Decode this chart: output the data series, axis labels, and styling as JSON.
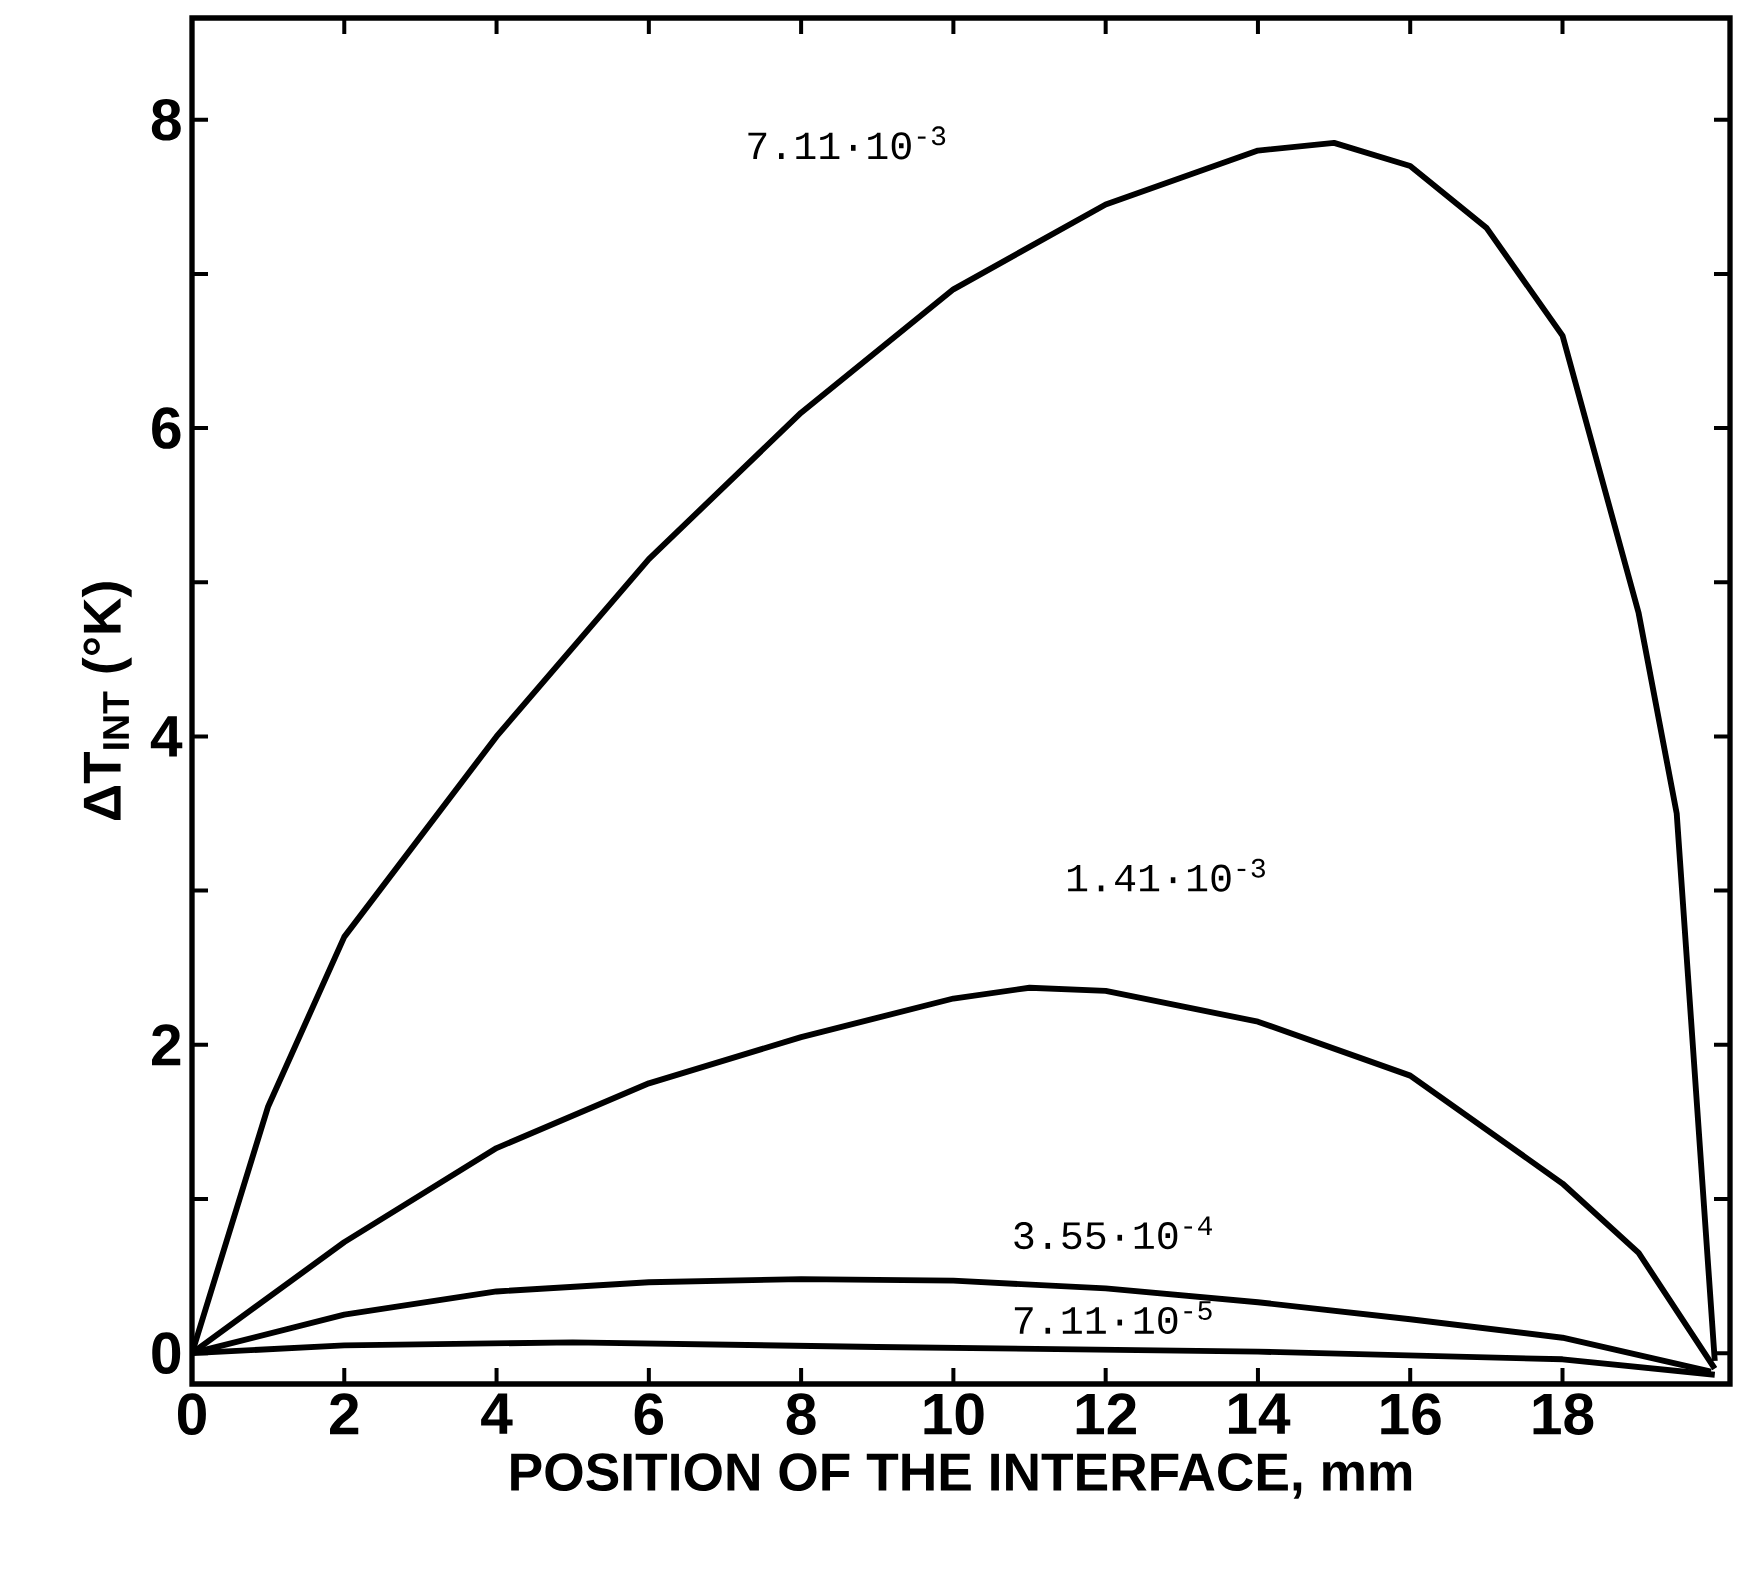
{
  "chart_data": {
    "type": "line",
    "xlabel": "POSITION OF THE INTERFACE, mm",
    "ylabel": "ΔT$_{INT}$ (°K)",
    "xlim": [
      0,
      20.2
    ],
    "ylim": [
      -0.2,
      8.66
    ],
    "xticks": [
      0,
      2,
      4,
      6,
      8,
      10,
      12,
      14,
      16,
      18
    ],
    "yticks": [
      0,
      {
        "value": 1,
        "label": null
      },
      2,
      {
        "value": 3,
        "label": null
      },
      4,
      {
        "value": 5,
        "label": null
      },
      6,
      {
        "value": 7,
        "label": null
      },
      8
    ],
    "grid": false,
    "legend": false,
    "marker": "none",
    "line_style": "solid",
    "series": [
      {
        "name": "7.11·10$^{-3}$",
        "color": "#000000",
        "x": [
          0,
          1,
          2,
          4,
          6,
          8,
          10,
          12,
          14,
          15,
          16,
          17,
          18,
          19,
          19.5,
          20
        ],
        "values": [
          0,
          1.6,
          2.7,
          4.0,
          5.15,
          6.1,
          6.9,
          7.45,
          7.8,
          7.85,
          7.7,
          7.3,
          6.6,
          4.8,
          3.5,
          -0.05
        ]
      },
      {
        "name": "1.41·10$^{-3}$",
        "color": "#000000",
        "x": [
          0,
          2,
          4,
          6,
          8,
          10,
          11,
          12,
          14,
          16,
          18,
          19,
          20
        ],
        "values": [
          0,
          0.72,
          1.33,
          1.75,
          2.05,
          2.3,
          2.37,
          2.35,
          2.15,
          1.8,
          1.1,
          0.65,
          -0.1
        ]
      },
      {
        "name": "3.55·10$^{-4}$",
        "color": "#000000",
        "x": [
          0,
          2,
          4,
          6,
          8,
          10,
          12,
          14,
          16,
          18,
          19.95
        ],
        "values": [
          0,
          0.25,
          0.4,
          0.46,
          0.48,
          0.47,
          0.42,
          0.33,
          0.22,
          0.1,
          -0.12
        ]
      },
      {
        "name": "7.11·10$^{-5}$",
        "color": "#000000",
        "x": [
          0,
          2,
          5,
          9,
          14,
          18,
          20
        ],
        "values": [
          0,
          0.05,
          0.07,
          0.04,
          0.01,
          -0.04,
          -0.14
        ]
      }
    ]
  }
}
